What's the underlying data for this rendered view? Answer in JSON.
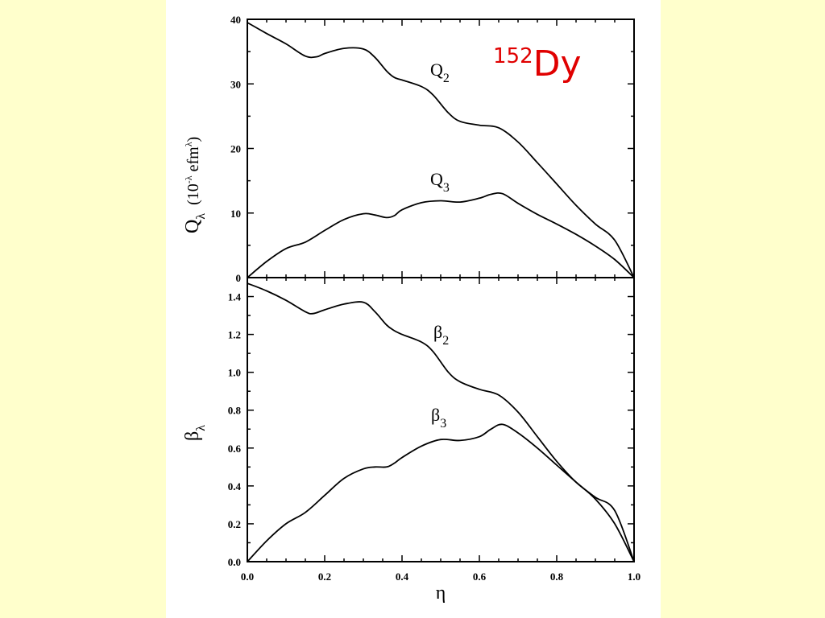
{
  "chart_data": [
    {
      "id": "top",
      "type": "line",
      "ylabel_main": "Q",
      "ylabel_sub": "λ",
      "ylabel_units_pre": "(10",
      "ylabel_units_exp": "-λ",
      "ylabel_units_mid": " efm",
      "ylabel_units_exp2": "λ",
      "ylabel_units_post": ")",
      "xlim": [
        0,
        1
      ],
      "ylim": [
        0,
        40
      ],
      "yticks": [
        0,
        10,
        20,
        30,
        40
      ],
      "ytick_labels": [
        "0",
        "10",
        "20",
        "30",
        "40"
      ],
      "nucleus_mass": "152",
      "nucleus_symbol": "Dy",
      "series": [
        {
          "label_main": "Q",
          "label_sub": "2",
          "x": [
            0.0,
            0.05,
            0.1,
            0.15,
            0.18,
            0.2,
            0.25,
            0.3,
            0.33,
            0.36,
            0.38,
            0.4,
            0.45,
            0.48,
            0.52,
            0.55,
            0.6,
            0.65,
            0.7,
            0.75,
            0.8,
            0.85,
            0.9,
            0.95,
            1.0
          ],
          "values": [
            39.5,
            37.8,
            36.2,
            34.3,
            34.2,
            34.7,
            35.5,
            35.4,
            34.1,
            32.0,
            31.0,
            30.6,
            29.6,
            28.3,
            25.5,
            24.2,
            23.6,
            23.2,
            21.0,
            17.8,
            14.5,
            11.2,
            8.3,
            5.8,
            0.0
          ]
        },
        {
          "label_main": "Q",
          "label_sub": "3",
          "x": [
            0.0,
            0.05,
            0.1,
            0.15,
            0.2,
            0.25,
            0.3,
            0.33,
            0.36,
            0.38,
            0.4,
            0.45,
            0.5,
            0.55,
            0.6,
            0.63,
            0.66,
            0.7,
            0.75,
            0.8,
            0.85,
            0.9,
            0.95,
            1.0
          ],
          "values": [
            0.0,
            2.5,
            4.5,
            5.5,
            7.3,
            9.0,
            9.9,
            9.7,
            9.3,
            9.6,
            10.5,
            11.6,
            11.9,
            11.7,
            12.3,
            12.9,
            13.0,
            11.5,
            9.8,
            8.3,
            6.7,
            4.9,
            2.8,
            0.0
          ]
        }
      ]
    },
    {
      "id": "bottom",
      "type": "line",
      "xlabel": "η",
      "ylabel_main": "β",
      "ylabel_sub": "λ",
      "xlim": [
        0,
        1
      ],
      "ylim": [
        0,
        1.5
      ],
      "xticks": [
        0.0,
        0.2,
        0.4,
        0.6,
        0.8,
        1.0
      ],
      "xtick_labels": [
        "0.0",
        "0.2",
        "0.4",
        "0.6",
        "0.8",
        "1.0"
      ],
      "yticks": [
        0.0,
        0.2,
        0.4,
        0.6,
        0.8,
        1.0,
        1.2,
        1.4
      ],
      "ytick_labels": [
        "0.0",
        "0.2",
        "0.4",
        "0.6",
        "0.8",
        "1.0",
        "1.2",
        "1.4"
      ],
      "series": [
        {
          "label_main": "β",
          "label_sub": "2",
          "x": [
            0.0,
            0.05,
            0.1,
            0.15,
            0.17,
            0.2,
            0.25,
            0.3,
            0.33,
            0.36,
            0.38,
            0.4,
            0.45,
            0.48,
            0.52,
            0.55,
            0.6,
            0.65,
            0.7,
            0.75,
            0.8,
            0.85,
            0.9,
            0.95,
            1.0
          ],
          "values": [
            1.47,
            1.43,
            1.38,
            1.32,
            1.31,
            1.33,
            1.36,
            1.37,
            1.32,
            1.25,
            1.22,
            1.2,
            1.16,
            1.11,
            1.0,
            0.95,
            0.91,
            0.88,
            0.79,
            0.66,
            0.53,
            0.42,
            0.34,
            0.27,
            0.0
          ]
        },
        {
          "label_main": "β",
          "label_sub": "3",
          "x": [
            0.0,
            0.05,
            0.1,
            0.15,
            0.2,
            0.25,
            0.3,
            0.33,
            0.36,
            0.38,
            0.4,
            0.45,
            0.5,
            0.55,
            0.6,
            0.63,
            0.66,
            0.7,
            0.75,
            0.8,
            0.85,
            0.9,
            0.95,
            1.0
          ],
          "values": [
            0.0,
            0.11,
            0.2,
            0.26,
            0.35,
            0.44,
            0.49,
            0.5,
            0.5,
            0.52,
            0.55,
            0.61,
            0.645,
            0.64,
            0.66,
            0.7,
            0.725,
            0.68,
            0.6,
            0.51,
            0.42,
            0.33,
            0.2,
            0.0
          ]
        }
      ]
    }
  ]
}
